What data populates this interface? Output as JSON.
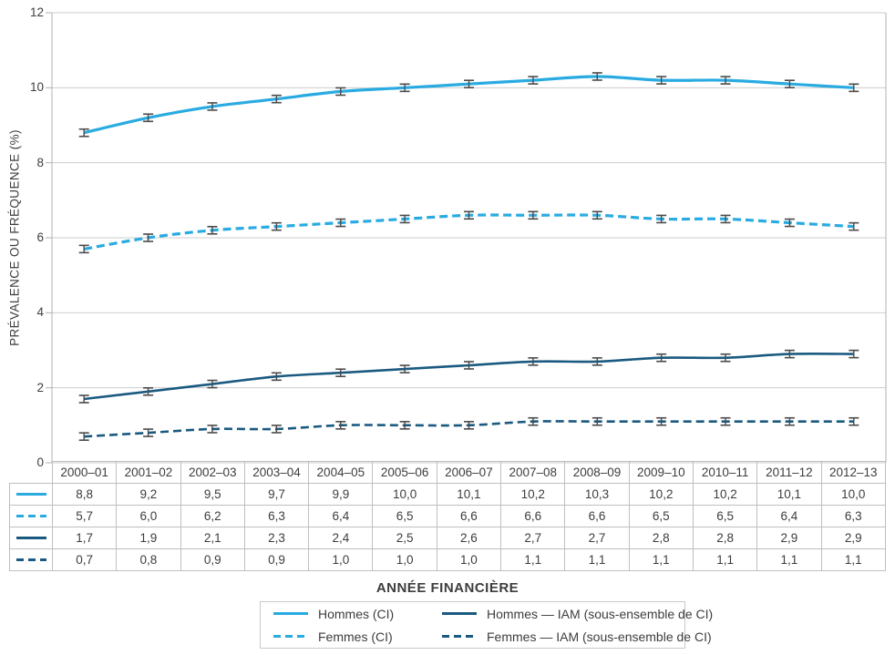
{
  "colors": {
    "light_blue": "#29ABE2",
    "dark_blue": "#1A5A80",
    "gridline": "#cdcdcd",
    "axis": "#b0b0b0",
    "table_border": "#bfbfbf",
    "text": "#3d3d3d",
    "error_bar": "#4a4a4a",
    "background": "#ffffff"
  },
  "chart_data": {
    "type": "line",
    "title": "",
    "xlabel": "ANNÉE FINANCIÈRE",
    "ylabel": "PRÉVALENCE OU FRÉQUENCE (%)",
    "ylim": [
      0,
      12
    ],
    "yticks": [
      0,
      2,
      4,
      6,
      8,
      10,
      12
    ],
    "grid": "horizontal",
    "error_bars": true,
    "decimal_separator": ",",
    "categories": [
      "2000–01",
      "2001–02",
      "2002–03",
      "2003–04",
      "2004–05",
      "2005–06",
      "2006–07",
      "2007–08",
      "2008–09",
      "2009–10",
      "2010–11",
      "2011–12",
      "2012–13"
    ],
    "series": [
      {
        "name": "Hommes (CI)",
        "color": "#29ABE2",
        "style": "solid",
        "values": [
          8.8,
          9.2,
          9.5,
          9.7,
          9.9,
          10.0,
          10.1,
          10.2,
          10.3,
          10.2,
          10.2,
          10.1,
          10.0
        ]
      },
      {
        "name": "Femmes (CI)",
        "color": "#29ABE2",
        "style": "dashed",
        "values": [
          5.7,
          6.0,
          6.2,
          6.3,
          6.4,
          6.5,
          6.6,
          6.6,
          6.6,
          6.5,
          6.5,
          6.4,
          6.3
        ]
      },
      {
        "name": "Hommes — IAM (sous-ensemble de CI)",
        "color": "#1A5A80",
        "style": "solid",
        "values": [
          1.7,
          1.9,
          2.1,
          2.3,
          2.4,
          2.5,
          2.6,
          2.7,
          2.7,
          2.8,
          2.8,
          2.9,
          2.9
        ]
      },
      {
        "name": "Femmes — IAM (sous-ensemble de CI)",
        "color": "#1A5A80",
        "style": "dashed",
        "values": [
          0.7,
          0.8,
          0.9,
          0.9,
          1.0,
          1.0,
          1.0,
          1.1,
          1.1,
          1.1,
          1.1,
          1.1,
          1.1
        ]
      }
    ],
    "legend_position": "bottom",
    "legend_order_columns": [
      [
        0,
        1
      ],
      [
        2,
        3
      ]
    ]
  }
}
